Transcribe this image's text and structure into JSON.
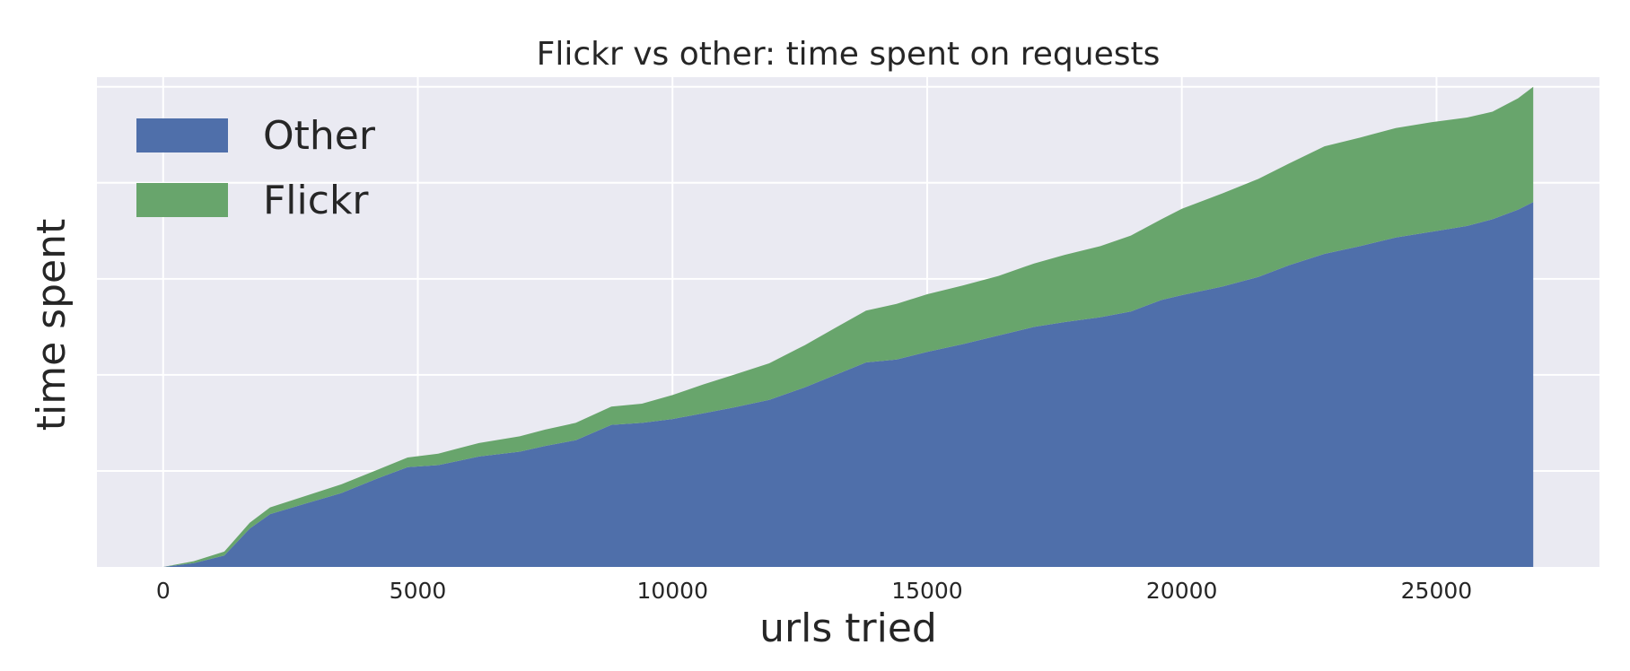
{
  "chart_data": {
    "type": "area",
    "stacked": true,
    "title": "Flickr vs other: time spent on requests",
    "xlabel": "urls tried",
    "ylabel": "time spent",
    "xlim": [
      -1300,
      28200
    ],
    "ylim": [
      0,
      5.1
    ],
    "xticks": [
      0,
      5000,
      10000,
      15000,
      20000,
      25000
    ],
    "xtick_labels": [
      "0",
      "5000",
      "10000",
      "15000",
      "20000",
      "25000"
    ],
    "yticks": [
      1,
      2,
      3,
      4,
      5
    ],
    "ytick_labels_shown": false,
    "grid": true,
    "legend_position": "top-left",
    "colors": {
      "background": "#eaeaf2",
      "grid": "#ffffff",
      "other": "#4f6faa",
      "flickr": "#68a56c"
    },
    "x": [
      0,
      600,
      1200,
      1700,
      2100,
      2800,
      3500,
      4200,
      4800,
      5400,
      6200,
      7000,
      7500,
      8100,
      8800,
      9400,
      10000,
      10600,
      11200,
      11900,
      12600,
      13200,
      13800,
      14400,
      15000,
      15700,
      16400,
      17100,
      17700,
      18400,
      19000,
      19600,
      20000,
      20800,
      21500,
      22100,
      22800,
      23500,
      24200,
      24900,
      25600,
      26100,
      26600,
      26900
    ],
    "series": [
      {
        "name": "Other",
        "color": "#4f6faa",
        "values": [
          0,
          0.04,
          0.12,
          0.4,
          0.55,
          0.66,
          0.77,
          0.92,
          1.04,
          1.06,
          1.15,
          1.2,
          1.26,
          1.32,
          1.48,
          1.5,
          1.54,
          1.6,
          1.66,
          1.74,
          1.87,
          2.0,
          2.13,
          2.16,
          2.24,
          2.32,
          2.41,
          2.5,
          2.55,
          2.6,
          2.66,
          2.78,
          2.83,
          2.92,
          3.02,
          3.14,
          3.26,
          3.34,
          3.43,
          3.49,
          3.55,
          3.62,
          3.72,
          3.8
        ]
      },
      {
        "name": "Flickr",
        "color": "#68a56c",
        "values": [
          0,
          0.02,
          0.04,
          0.06,
          0.07,
          0.08,
          0.09,
          0.09,
          0.1,
          0.12,
          0.14,
          0.16,
          0.17,
          0.18,
          0.19,
          0.2,
          0.25,
          0.3,
          0.34,
          0.38,
          0.44,
          0.49,
          0.54,
          0.58,
          0.6,
          0.61,
          0.62,
          0.66,
          0.7,
          0.74,
          0.79,
          0.84,
          0.9,
          0.97,
          1.02,
          1.06,
          1.12,
          1.13,
          1.14,
          1.14,
          1.13,
          1.12,
          1.16,
          1.2
        ]
      }
    ]
  }
}
